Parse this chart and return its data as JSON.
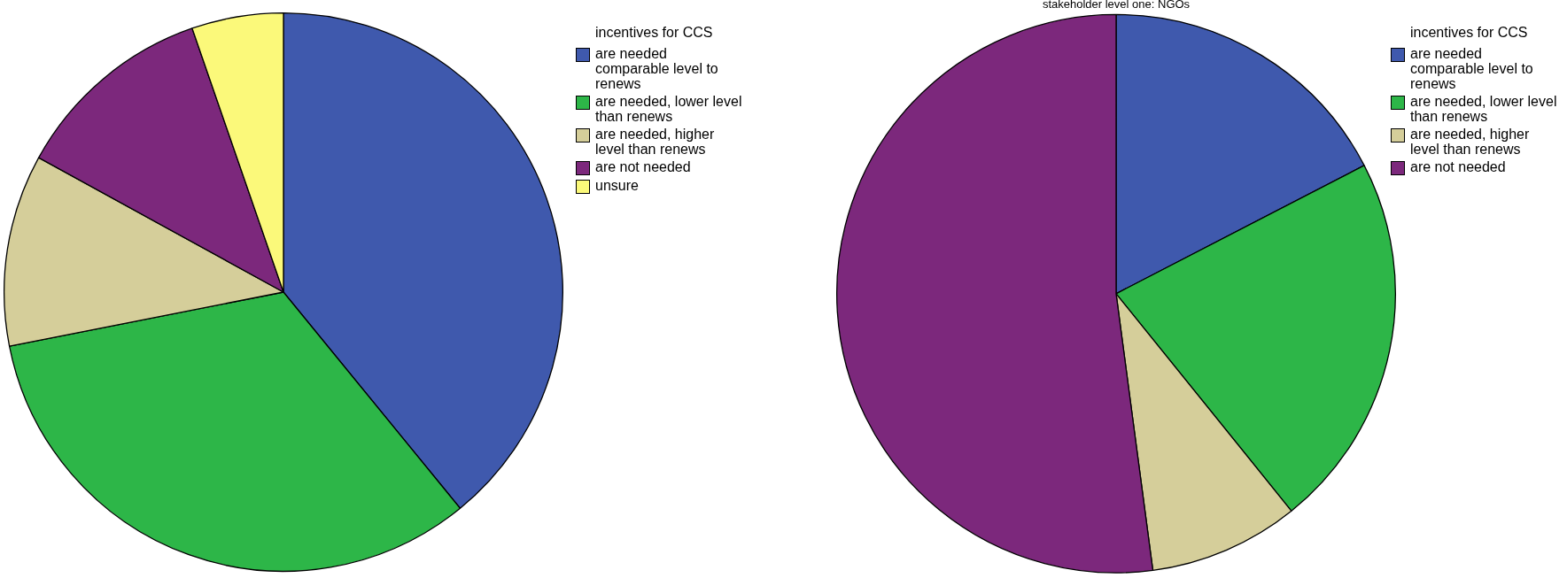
{
  "chart_data": [
    {
      "type": "pie",
      "legend_title": "incentives for CCS",
      "legend": "top right",
      "categories": [
        "are needed comparable level to renews",
        "are needed, lower level than renews",
        "are needed, higher level than renews",
        "are not needed",
        "unsure"
      ],
      "values": [
        39.1,
        32.8,
        11.1,
        11.7,
        5.3
      ],
      "colors": [
        "#3f59ad",
        "#2db648",
        "#d5ce9a",
        "#7c287c",
        "#fbf97a"
      ]
    },
    {
      "type": "pie",
      "title": "stakeholder level one: NGOs",
      "legend_title": "incentives for CCS",
      "legend": "top right",
      "categories": [
        "are needed comparable level to renews",
        "are needed, lower level than renews",
        "are needed, higher level than renews",
        "are not needed"
      ],
      "values": [
        17.4,
        21.8,
        8.7,
        52.1
      ],
      "colors": [
        "#3f59ad",
        "#2db648",
        "#d5ce9a",
        "#7c287c"
      ]
    }
  ]
}
